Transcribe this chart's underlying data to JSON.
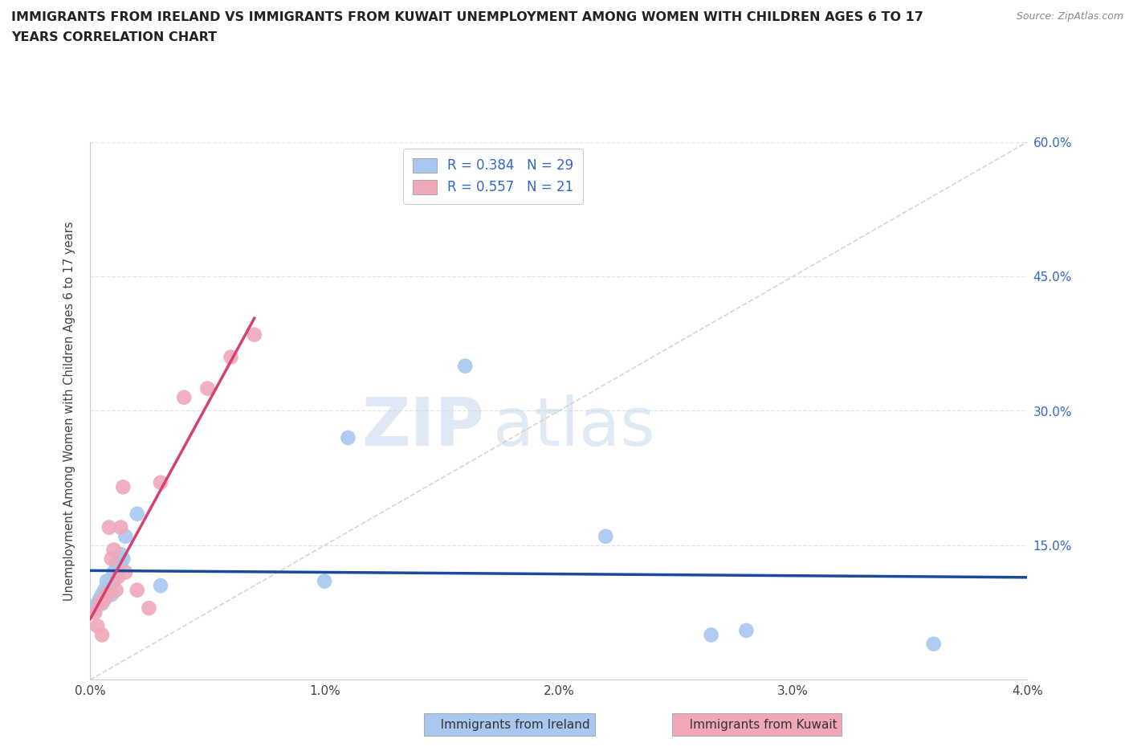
{
  "title_line1": "IMMIGRANTS FROM IRELAND VS IMMIGRANTS FROM KUWAIT UNEMPLOYMENT AMONG WOMEN WITH CHILDREN AGES 6 TO 17",
  "title_line2": "YEARS CORRELATION CHART",
  "source": "Source: ZipAtlas.com",
  "ylabel": "Unemployment Among Women with Children Ages 6 to 17 years",
  "xlim": [
    0.0,
    0.04
  ],
  "ylim": [
    0.0,
    0.6
  ],
  "xticks": [
    0.0,
    0.01,
    0.02,
    0.03,
    0.04
  ],
  "yticks": [
    0.0,
    0.15,
    0.3,
    0.45,
    0.6
  ],
  "xticklabels": [
    "0.0%",
    "1.0%",
    "2.0%",
    "3.0%",
    "4.0%"
  ],
  "right_yticklabels": [
    "",
    "15.0%",
    "30.0%",
    "45.0%",
    "60.0%"
  ],
  "ireland_color": "#a8c8f0",
  "kuwait_color": "#f0a8b8",
  "ireland_line_color": "#1a4a9a",
  "kuwait_line_color": "#d44070",
  "diag_line_color": "#cccccc",
  "ireland_R": 0.384,
  "ireland_N": 29,
  "kuwait_R": 0.557,
  "kuwait_N": 21,
  "watermark_zip": "ZIP",
  "watermark_atlas": "atlas",
  "ireland_x": [
    0.0002,
    0.0003,
    0.0004,
    0.0005,
    0.0005,
    0.0006,
    0.0006,
    0.0007,
    0.0007,
    0.0008,
    0.0008,
    0.0009,
    0.001,
    0.001,
    0.0011,
    0.0012,
    0.0013,
    0.0013,
    0.0014,
    0.0015,
    0.002,
    0.003,
    0.01,
    0.011,
    0.016,
    0.022,
    0.0265,
    0.028,
    0.036
  ],
  "ireland_y": [
    0.08,
    0.085,
    0.09,
    0.085,
    0.095,
    0.09,
    0.1,
    0.1,
    0.11,
    0.095,
    0.105,
    0.095,
    0.11,
    0.12,
    0.13,
    0.12,
    0.13,
    0.14,
    0.135,
    0.16,
    0.185,
    0.105,
    0.11,
    0.27,
    0.35,
    0.16,
    0.05,
    0.055,
    0.04
  ],
  "kuwait_x": [
    0.0002,
    0.0003,
    0.0004,
    0.0005,
    0.0006,
    0.0007,
    0.0008,
    0.0009,
    0.001,
    0.0011,
    0.0012,
    0.0013,
    0.0014,
    0.0015,
    0.002,
    0.0025,
    0.003,
    0.004,
    0.005,
    0.006,
    0.007
  ],
  "kuwait_y": [
    0.075,
    0.06,
    0.085,
    0.05,
    0.09,
    0.095,
    0.17,
    0.135,
    0.145,
    0.1,
    0.115,
    0.17,
    0.215,
    0.12,
    0.1,
    0.08,
    0.22,
    0.315,
    0.325,
    0.36,
    0.385
  ]
}
